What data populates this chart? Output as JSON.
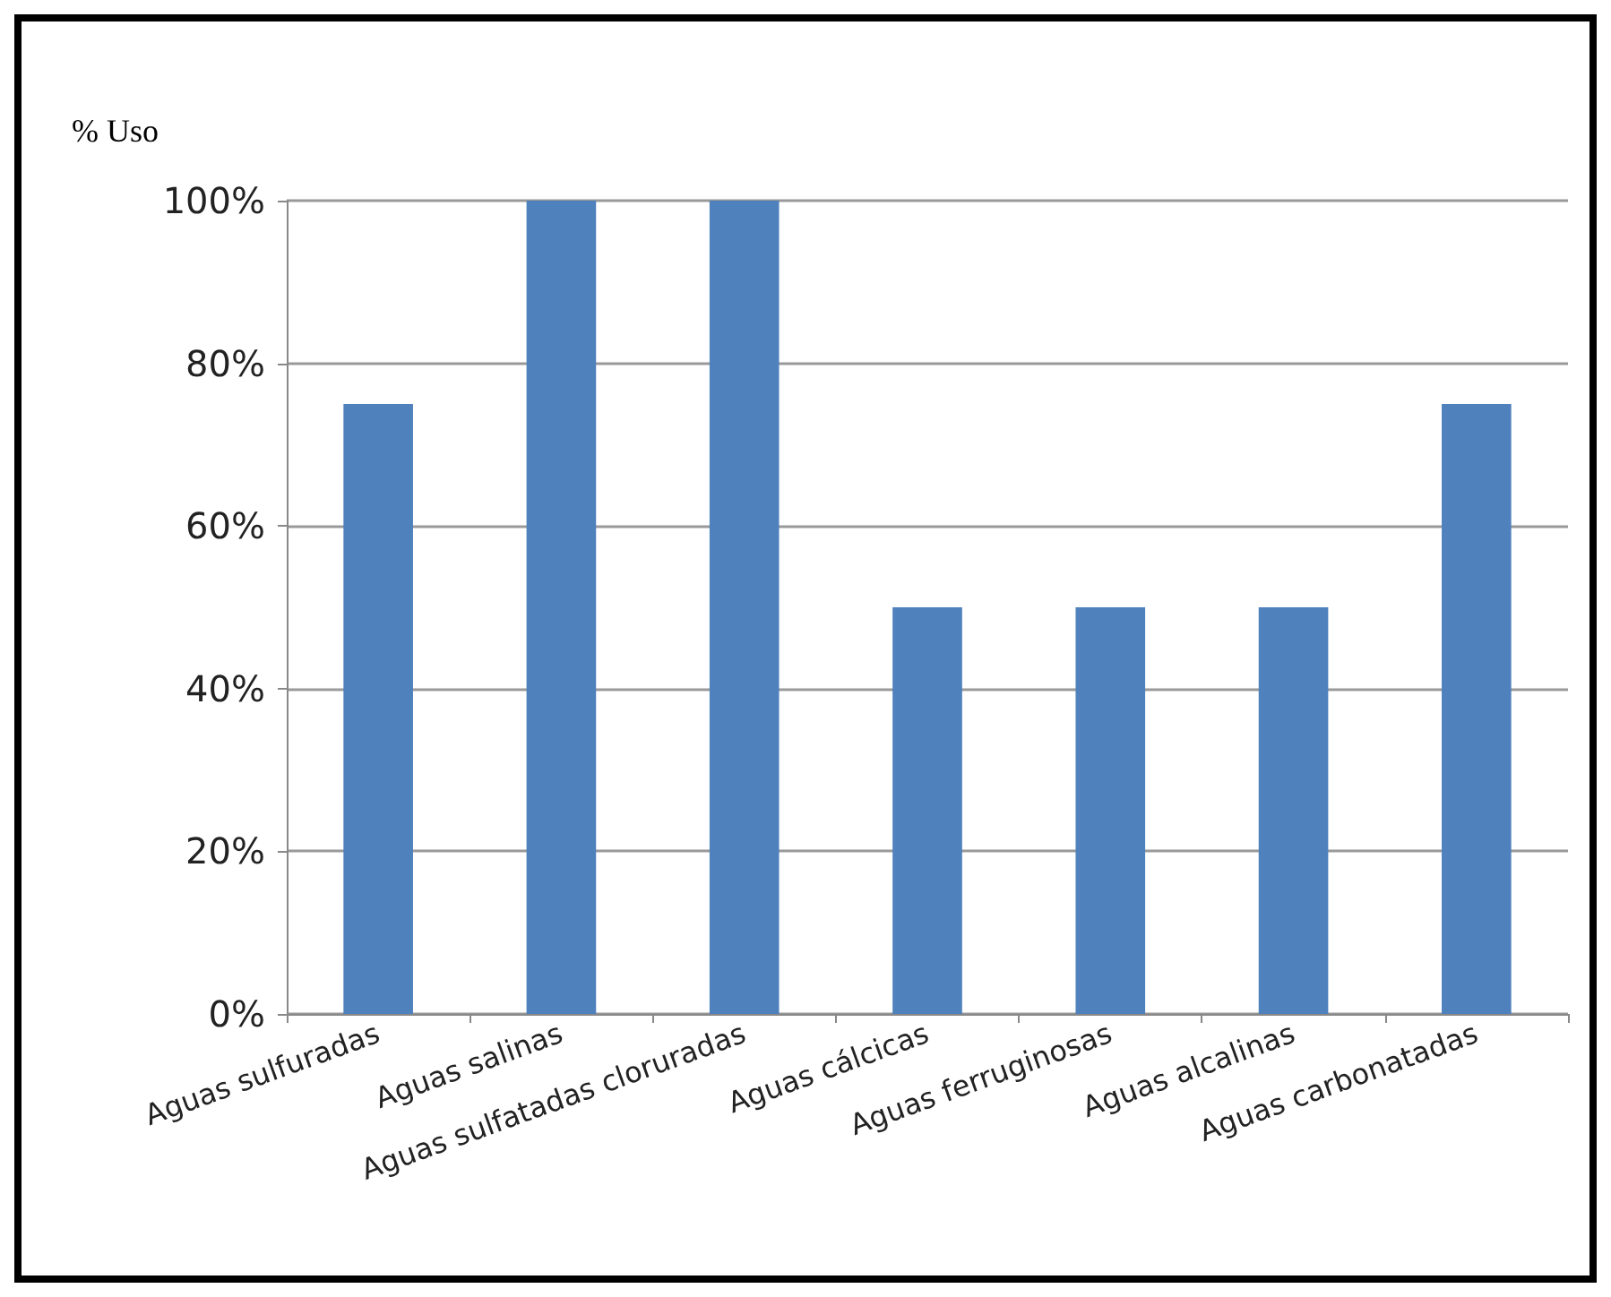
{
  "chart_data": {
    "type": "bar",
    "ylabel": "% Uso",
    "categories": [
      "Aguas sulfuradas",
      "Aguas salinas",
      "Aguas sulfatadas cloruradas",
      "Aguas cálcicas",
      "Aguas ferruginosas",
      "Aguas alcalinas",
      "Aguas carbonatadas"
    ],
    "values": [
      75,
      100,
      100,
      50,
      50,
      50,
      75
    ],
    "color": "#4f81bd",
    "ylim": [
      0,
      100
    ],
    "yticks": [
      {
        "value": 0,
        "label": "0%"
      },
      {
        "value": 20,
        "label": "20%"
      },
      {
        "value": 40,
        "label": "40%"
      },
      {
        "value": 60,
        "label": "60%"
      },
      {
        "value": 80,
        "label": "80%"
      },
      {
        "value": 100,
        "label": "100%"
      }
    ],
    "grid": "y"
  }
}
